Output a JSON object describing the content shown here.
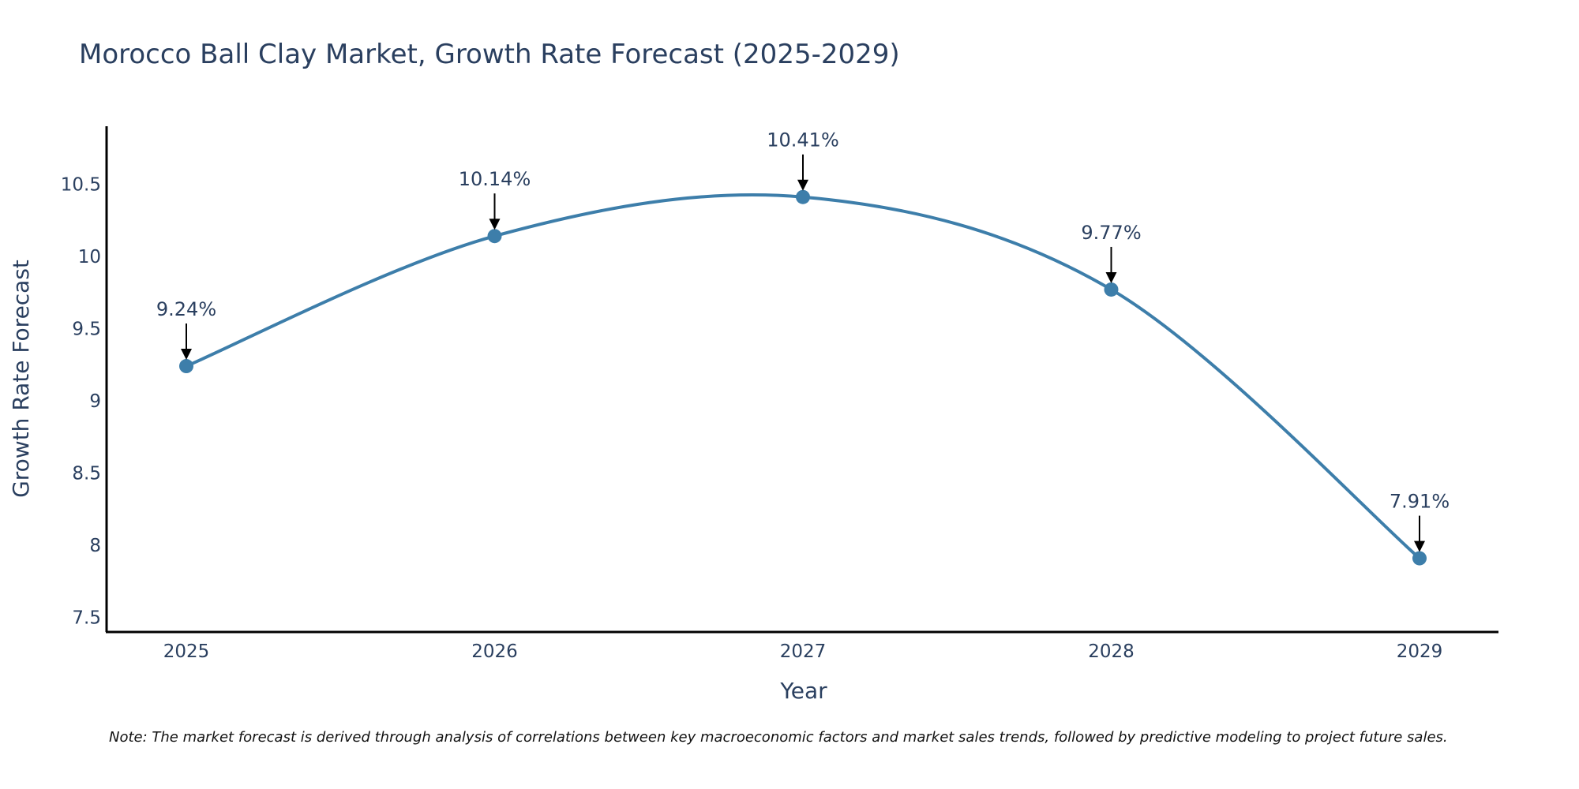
{
  "chart_data": {
    "type": "line",
    "title": "Morocco Ball Clay Market, Growth Rate Forecast (2025-2029)",
    "xlabel": "Year",
    "ylabel": "Growth Rate Forecast",
    "categories": [
      "2025",
      "2026",
      "2027",
      "2028",
      "2029"
    ],
    "series": [
      {
        "name": "Growth Rate Forecast",
        "values": [
          9.24,
          10.14,
          10.41,
          9.77,
          7.91
        ],
        "labels": [
          "9.24%",
          "10.14%",
          "10.41%",
          "9.77%",
          "7.91%"
        ]
      }
    ],
    "ylim": [
      7.4,
      10.9
    ],
    "yticks": [
      7.5,
      8,
      8.5,
      9,
      9.5,
      10,
      10.5
    ],
    "ytick_labels": [
      "7.5",
      "8",
      "8.5",
      "9",
      "9.5",
      "10",
      "10.5"
    ],
    "grid": false,
    "line_color": "#3d7eaa",
    "marker_color": "#3d7eaa",
    "note": "Note: The market forecast is derived through analysis of correlations between key macroeconomic factors and market sales trends, followed by predictive modeling to project future sales."
  }
}
